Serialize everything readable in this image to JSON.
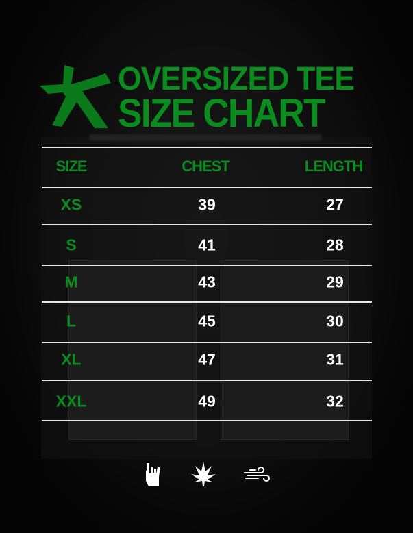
{
  "title": {
    "line1": "OVERSIZED TEE",
    "line2": "SIZE CHART",
    "logo": "大"
  },
  "colors": {
    "accent": "#0a8c1f",
    "text": "#ffffff",
    "background": "#050505"
  },
  "table": {
    "headers": [
      "SIZE",
      "CHEST",
      "LENGTH"
    ],
    "rows": [
      [
        "XS",
        "39",
        "27"
      ],
      [
        "S",
        "41",
        "28"
      ],
      [
        "M",
        "43",
        "29"
      ],
      [
        "L",
        "45",
        "30"
      ],
      [
        "XL",
        "47",
        "31"
      ],
      [
        "XXL",
        "49",
        "32"
      ]
    ]
  },
  "icons": [
    "rock-hand-icon",
    "cannabis-leaf-icon",
    "wind-icon"
  ]
}
